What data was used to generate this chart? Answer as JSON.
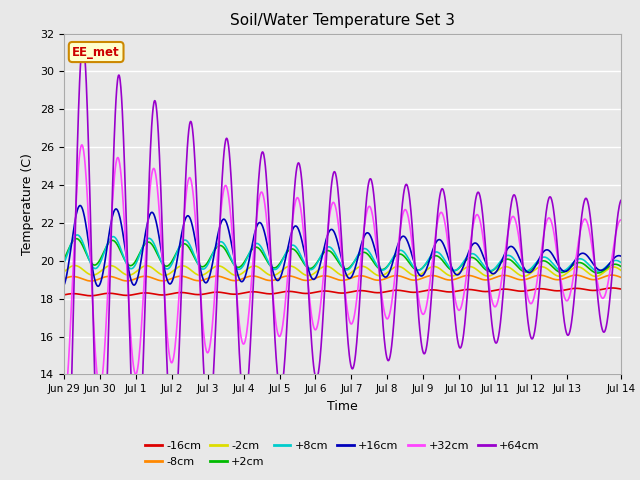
{
  "title": "Soil/Water Temperature Set 3",
  "xlabel": "Time",
  "ylabel": "Temperature (C)",
  "ylim": [
    14,
    32
  ],
  "yticks": [
    14,
    16,
    18,
    20,
    22,
    24,
    26,
    28,
    30,
    32
  ],
  "bg_color": "#e8e8e8",
  "plot_bg_color": "#e8e8e8",
  "annotation_text": "EE_met",
  "annotation_bg": "#ffffcc",
  "annotation_border": "#cc8800",
  "annotation_text_color": "#cc0000",
  "legend_entries": [
    "-16cm",
    "-8cm",
    "-2cm",
    "+2cm",
    "+8cm",
    "+16cm",
    "+32cm",
    "+64cm"
  ],
  "line_colors": {
    "-16cm": "#dd0000",
    "-8cm": "#ff8800",
    "-2cm": "#dddd00",
    "+2cm": "#00bb00",
    "+8cm": "#00cccc",
    "+16cm": "#0000bb",
    "+32cm": "#ff44ff",
    "+64cm": "#9900cc"
  },
  "x_start": 0,
  "x_end": 15.5,
  "xtick_positions": [
    0,
    1,
    2,
    3,
    4,
    5,
    6,
    7,
    8,
    9,
    10,
    11,
    12,
    13,
    14,
    15.5
  ],
  "xtick_labels": [
    "Jun 29",
    "Jun 30",
    "Jul 1",
    "Jul 2",
    "Jul 3",
    "Jul 4",
    "Jul 5",
    "Jul 6",
    "Jul 7",
    "Jul 8",
    "Jul 9",
    "Jul 10",
    "Jul 11",
    "Jul 12",
    "Jul 13",
    "Jul 14"
  ]
}
